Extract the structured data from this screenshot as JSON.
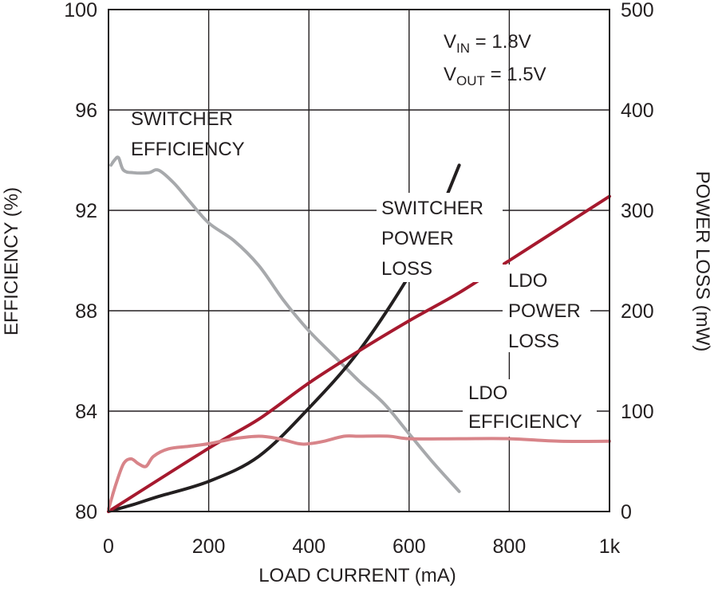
{
  "chart_data": {
    "type": "line",
    "title": "",
    "xlabel": "LOAD CURRENT (mA)",
    "ylabel_left": "EFFICIENCY (%)",
    "ylabel_right": "POWER LOSS (mW)",
    "xlim": [
      0,
      1000
    ],
    "ylim_left": [
      80,
      100
    ],
    "ylim_right": [
      0,
      500
    ],
    "grid": true,
    "legend": "none (inline labels)",
    "x_tick_labels": [
      "0",
      "200",
      "400",
      "600",
      "800",
      "1k"
    ],
    "x_tick_values": [
      0,
      200,
      400,
      600,
      800,
      1000
    ],
    "y_left_tick_labels": [
      "80",
      "84",
      "88",
      "92",
      "96",
      "100"
    ],
    "y_left_tick_values": [
      80,
      84,
      88,
      92,
      96,
      100
    ],
    "y_right_tick_labels": [
      "0",
      "100",
      "200",
      "300",
      "400",
      "500"
    ],
    "y_right_tick_values": [
      0,
      100,
      200,
      300,
      400,
      500
    ],
    "conditions": {
      "vin": {
        "main": "V",
        "sub": "IN",
        "rest": " = 1.8V"
      },
      "vout": {
        "main": "V",
        "sub": "OUT",
        "rest": " = 1.5V"
      }
    },
    "series": [
      {
        "name": "SWITCHER EFFICIENCY",
        "axis": "left",
        "color": "#a7a9ac",
        "x": [
          5,
          12,
          20,
          30,
          50,
          80,
          100,
          130,
          160,
          200,
          250,
          300,
          350,
          400,
          450,
          500,
          550,
          600,
          650,
          700
        ],
        "y": [
          93.8,
          94.0,
          94.1,
          93.6,
          93.5,
          93.5,
          93.6,
          93.1,
          92.4,
          91.5,
          90.8,
          89.8,
          88.4,
          87.2,
          86.2,
          85.2,
          84.3,
          83.1,
          81.9,
          80.8
        ]
      },
      {
        "name": "SWITCHER POWER LOSS",
        "axis": "right",
        "color": "#231f20",
        "x": [
          0,
          50,
          100,
          200,
          300,
          400,
          500,
          600,
          650,
          700
        ],
        "y": [
          0,
          7,
          15,
          30,
          55,
          103,
          160,
          235,
          285,
          345
        ]
      },
      {
        "name": "LDO POWER LOSS",
        "axis": "right",
        "color": "#a6192e",
        "x": [
          0,
          200,
          300,
          400,
          500,
          600,
          700,
          800,
          900,
          1000
        ],
        "y": [
          0,
          63,
          92,
          128,
          160,
          190,
          218,
          250,
          282,
          314
        ]
      },
      {
        "name": "LDO EFFICIENCY",
        "axis": "left",
        "color": "#d88489",
        "x": [
          0,
          15,
          30,
          45,
          60,
          75,
          90,
          120,
          160,
          200,
          250,
          300,
          340,
          380,
          400,
          430,
          470,
          500,
          560,
          600,
          700,
          800,
          900,
          1000
        ],
        "y": [
          80.1,
          81.1,
          81.9,
          82.1,
          81.9,
          81.8,
          82.2,
          82.5,
          82.6,
          82.7,
          82.9,
          83.0,
          82.9,
          82.7,
          82.7,
          82.8,
          83.0,
          83.0,
          83.0,
          82.9,
          82.9,
          82.9,
          82.8,
          82.8
        ]
      }
    ],
    "annotations": {
      "switcher_efficiency": [
        "SWITCHER",
        "EFFICIENCY"
      ],
      "switcher_power_loss": [
        "SWITCHER",
        "POWER",
        "LOSS"
      ],
      "ldo_power_loss": [
        "LDO",
        "POWER",
        "LOSS"
      ],
      "ldo_efficiency": [
        "LDO",
        "EFFICIENCY"
      ]
    }
  }
}
